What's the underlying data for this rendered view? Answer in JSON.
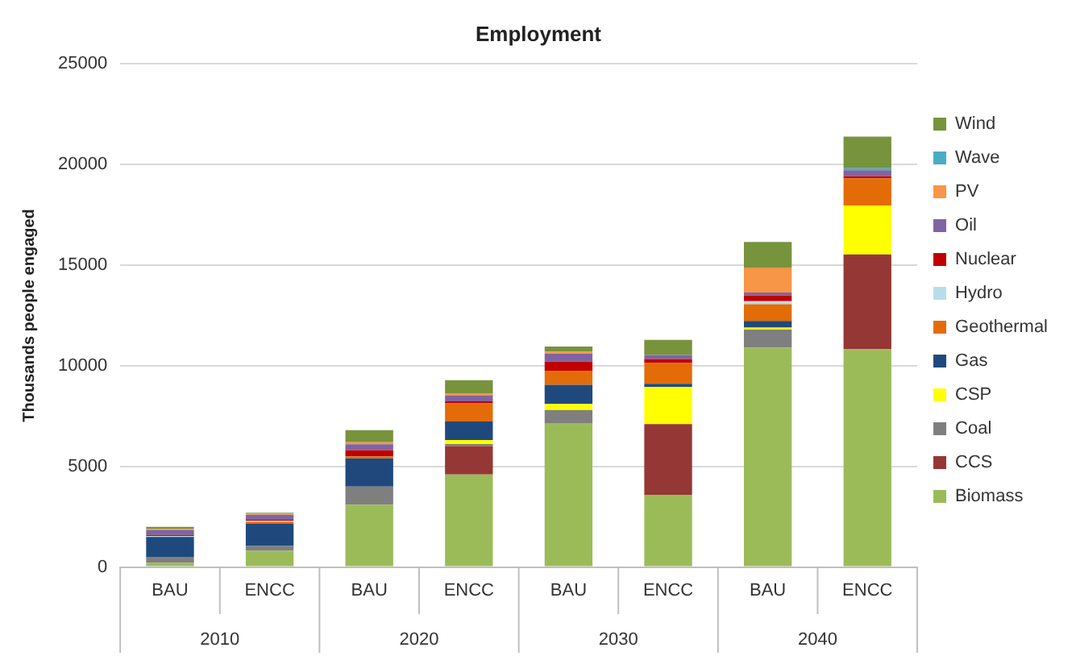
{
  "chart_data": {
    "type": "bar",
    "title": "Employment",
    "ylabel": "Thousands people engaged",
    "categories": [
      "BAU",
      "ENCC",
      "BAU",
      "ENCC",
      "BAU",
      "ENCC",
      "BAU",
      "ENCC"
    ],
    "annotations": [
      "2010",
      "2020",
      "2030",
      "2040"
    ],
    "stacked": true,
    "grid": "y",
    "legend": "right",
    "ylim": [
      0,
      25000
    ],
    "yticks": [
      0,
      5000,
      10000,
      15000,
      20000,
      25000
    ],
    "series": [
      {
        "name": "Biomass",
        "color": "#9bbb59",
        "values": [
          200,
          800,
          3100,
          4600,
          7150,
          3590,
          10900,
          10820
        ]
      },
      {
        "name": "CCS",
        "color": "#953735",
        "values": [
          0,
          0,
          0,
          1410,
          0,
          3510,
          0,
          4710
        ]
      },
      {
        "name": "Coal",
        "color": "#7f7f7f",
        "values": [
          300,
          250,
          900,
          100,
          650,
          0,
          900,
          0
        ]
      },
      {
        "name": "CSP",
        "color": "#ffff00",
        "values": [
          0,
          0,
          0,
          200,
          300,
          1850,
          100,
          2430
        ]
      },
      {
        "name": "Gas",
        "color": "#1f497d",
        "values": [
          1000,
          1100,
          1400,
          920,
          950,
          150,
          330,
          0
        ]
      },
      {
        "name": "Geothermal",
        "color": "#e36c09",
        "values": [
          null,
          100,
          100,
          900,
          700,
          1030,
          830,
          1350
        ]
      },
      {
        "name": "Hydro",
        "color": "#b7dee8",
        "values": [
          50,
          50,
          null,
          null,
          null,
          null,
          150,
          null
        ]
      },
      {
        "name": "Nuclear",
        "color": "#c00000",
        "values": [
          50,
          50,
          300,
          100,
          450,
          200,
          280,
          100
        ]
      },
      {
        "name": "Oil",
        "color": "#8064a2",
        "values": [
          250,
          250,
          300,
          300,
          400,
          200,
          150,
          300
        ]
      },
      {
        "name": "PV",
        "color": "#f79646",
        "values": [
          50,
          50,
          100,
          100,
          100,
          0,
          1240,
          0
        ]
      },
      {
        "name": "Wave",
        "color": "#4bacc6",
        "values": [
          0,
          0,
          0,
          0,
          0,
          0,
          0,
          100
        ]
      },
      {
        "name": "Wind",
        "color": "#77933c",
        "values": [
          100,
          50,
          600,
          650,
          250,
          750,
          1270,
          1570
        ]
      }
    ]
  }
}
